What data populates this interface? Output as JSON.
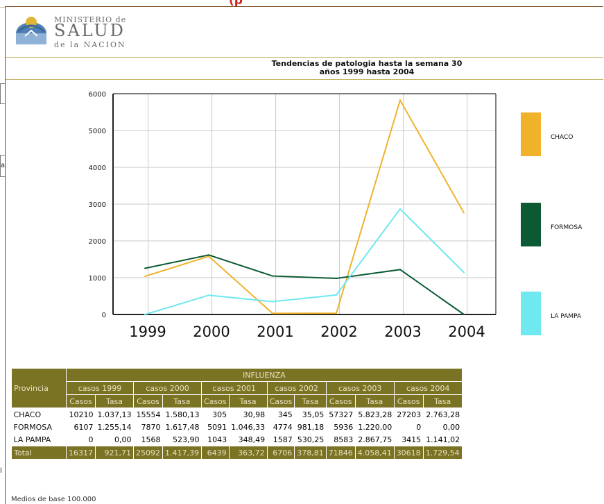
{
  "header": {
    "red_text": "(p",
    "logo": {
      "line1": "MINISTERIO de",
      "line2": "SALUD",
      "line3": "de la NACION"
    },
    "side_fragment_a": "a",
    "side_fragment_b": "l"
  },
  "chart_data": {
    "type": "line",
    "title": "Tendencias de patologia hasta la semana 30",
    "subtitle": "años 1999 hasta 2004",
    "categories": [
      "1999",
      "2000",
      "2001",
      "2002",
      "2003",
      "2004"
    ],
    "yticks": [
      "0",
      "1000",
      "2000",
      "3000",
      "4000",
      "5000",
      "6000"
    ],
    "ylim": [
      0,
      6000
    ],
    "grid": true,
    "legend_position": "right",
    "series": [
      {
        "name": "CHACO",
        "color": "#f0b22b",
        "values": [
          1037,
          1580,
          31,
          35,
          5823,
          2763
        ]
      },
      {
        "name": "FORMOSA",
        "color": "#0b5a33",
        "values": [
          1255,
          1617,
          1046,
          981,
          1220,
          0
        ]
      },
      {
        "name": "LA PAMPA",
        "color": "#6fe8ef",
        "values": [
          0,
          524,
          348,
          530,
          2868,
          1141
        ]
      }
    ]
  },
  "table": {
    "group_header": "INFLUENZA",
    "row_header": "Provincia",
    "year_headers": [
      "casos 1999",
      "casos 2000",
      "casos 2001",
      "casos 2002",
      "casos 2003",
      "casos 2004"
    ],
    "sub_headers": [
      "Casos",
      "Tasa"
    ],
    "rows": [
      {
        "provincia": "CHACO",
        "cells": [
          "10210",
          "1.037,13",
          "15554",
          "1.580,13",
          "305",
          "30,98",
          "345",
          "35,05",
          "57327",
          "5.823,28",
          "27203",
          "2.763,28"
        ]
      },
      {
        "provincia": "FORMOSA",
        "cells": [
          "6107",
          "1.255,14",
          "7870",
          "1.617,48",
          "5091",
          "1.046,33",
          "4774",
          "981,18",
          "5936",
          "1.220,00",
          "0",
          "0,00"
        ]
      },
      {
        "provincia": "LA PAMPA",
        "cells": [
          "0",
          "0,00",
          "1568",
          "523,90",
          "1043",
          "348,49",
          "1587",
          "530,25",
          "8583",
          "2.867,75",
          "3415",
          "1.141,02"
        ]
      }
    ],
    "total": {
      "label": "Total",
      "cells": [
        "16317",
        "921,71",
        "25092",
        "1.417,39",
        "6439",
        "363,72",
        "6706",
        "378,81",
        "71846",
        "4.058,41",
        "30618",
        "1.729,54"
      ]
    }
  },
  "footer_text": "Medios de base 100.000"
}
